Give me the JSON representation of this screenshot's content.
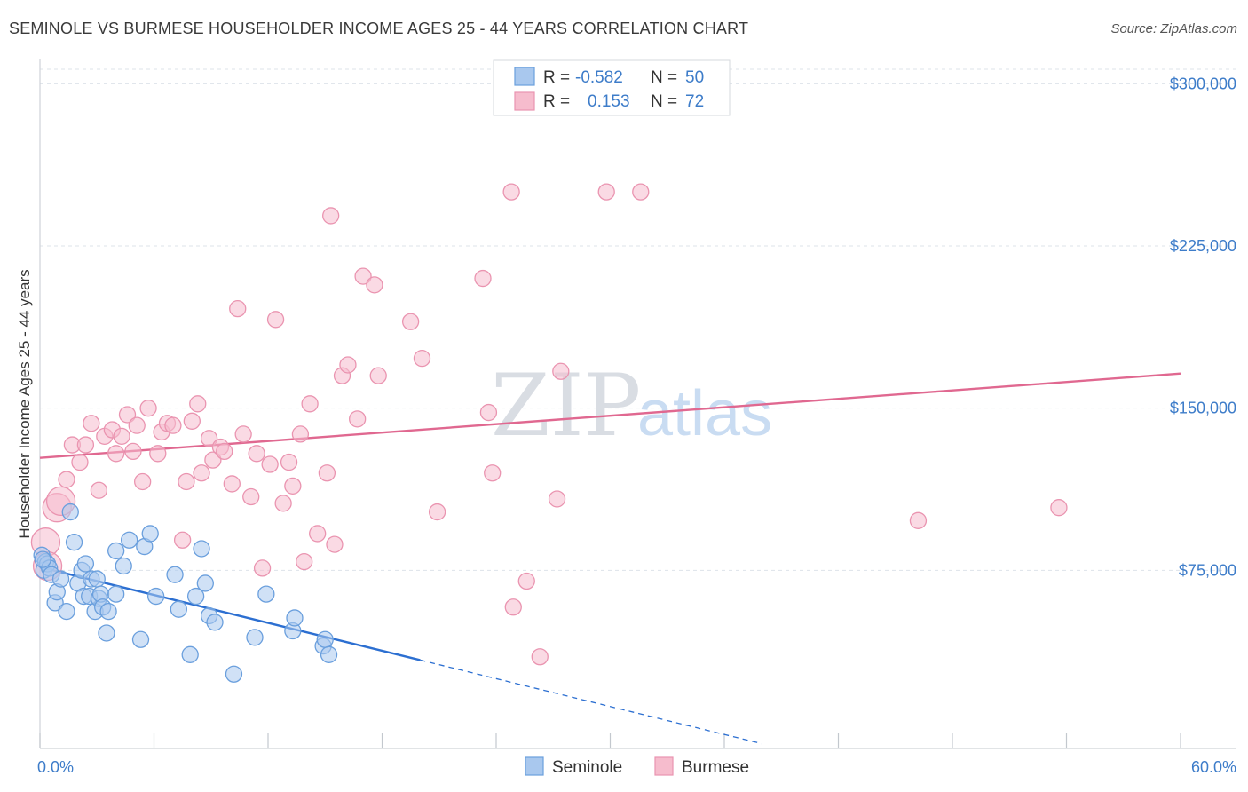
{
  "title": "SEMINOLE VS BURMESE HOUSEHOLDER INCOME AGES 25 - 44 YEARS CORRELATION CHART",
  "source": "Source: ZipAtlas.com",
  "watermark": {
    "zip": "ZIP",
    "atlas": "atlas"
  },
  "colors": {
    "seminole_fill": "#a9c8ee",
    "seminole_stroke": "#6a9fdd",
    "seminole_line": "#2c6fd1",
    "burmese_fill": "#f6bccd",
    "burmese_stroke": "#ea94b0",
    "burmese_line": "#e06890",
    "tick_label": "#3d7cc9",
    "grid": "#dde3ea"
  },
  "legend_top": {
    "rows": [
      {
        "r_label": "R =",
        "r_value": "-0.582",
        "n_label": "N =",
        "n_value": "50",
        "series": "seminole"
      },
      {
        "r_label": "R =",
        "r_value": "0.153",
        "n_label": "N =",
        "n_value": "72",
        "series": "burmese"
      }
    ]
  },
  "legend_bottom": [
    {
      "label": "Seminole",
      "series": "seminole"
    },
    {
      "label": "Burmese",
      "series": "burmese"
    }
  ],
  "chart_data": {
    "type": "scatter",
    "title": "SEMINOLE VS BURMESE HOUSEHOLDER INCOME AGES 25 - 44 YEARS CORRELATION CHART",
    "xlabel": "",
    "ylabel": "Householder Income Ages 25 - 44 years",
    "xlim": [
      0,
      60
    ],
    "ylim": [
      0,
      310000
    ],
    "x_tick_labels": [
      {
        "value": 0,
        "label": "0.0%"
      },
      {
        "value": 60,
        "label": "60.0%"
      }
    ],
    "y_ticks": [
      {
        "value": 75000,
        "label": "$75,000"
      },
      {
        "value": 150000,
        "label": "$150,000"
      },
      {
        "value": 225000,
        "label": "$225,000"
      },
      {
        "value": 300000,
        "label": "$300,000"
      }
    ],
    "x_minor_ticks": [
      0,
      6,
      12,
      18,
      24,
      30,
      36,
      42,
      48,
      54,
      60
    ],
    "series": [
      {
        "name": "Seminole",
        "key": "seminole",
        "R": -0.582,
        "N": 50,
        "trend": {
          "x0": 0,
          "y0": 76500,
          "x1": 20,
          "y1": 33500,
          "dash_to_x": 38
        },
        "points": [
          [
            0.1,
            82000
          ],
          [
            0.2,
            75000
          ],
          [
            0.3,
            79000
          ],
          [
            0.4,
            78000
          ],
          [
            0.5,
            76000
          ],
          [
            0.6,
            73000
          ],
          [
            0.8,
            60000
          ],
          [
            0.9,
            65000
          ],
          [
            1.1,
            71000
          ],
          [
            1.4,
            56000
          ],
          [
            1.6,
            102000
          ],
          [
            1.8,
            88000
          ],
          [
            2.0,
            69000
          ],
          [
            2.2,
            75000
          ],
          [
            2.3,
            63000
          ],
          [
            2.4,
            78000
          ],
          [
            2.6,
            63000
          ],
          [
            2.7,
            71000
          ],
          [
            2.9,
            56000
          ],
          [
            3.0,
            71000
          ],
          [
            3.1,
            62000
          ],
          [
            3.2,
            64000
          ],
          [
            3.3,
            58000
          ],
          [
            3.5,
            46000
          ],
          [
            3.6,
            56000
          ],
          [
            4.0,
            64000
          ],
          [
            4.0,
            84000
          ],
          [
            4.4,
            77000
          ],
          [
            4.7,
            89000
          ],
          [
            5.3,
            43000
          ],
          [
            5.5,
            86000
          ],
          [
            5.8,
            92000
          ],
          [
            6.1,
            63000
          ],
          [
            7.1,
            73000
          ],
          [
            7.3,
            57000
          ],
          [
            7.9,
            36000
          ],
          [
            8.2,
            63000
          ],
          [
            8.5,
            85000
          ],
          [
            8.7,
            69000
          ],
          [
            8.9,
            54000
          ],
          [
            9.2,
            51000
          ],
          [
            10.2,
            27000
          ],
          [
            11.3,
            44000
          ],
          [
            11.9,
            64000
          ],
          [
            13.3,
            47000
          ],
          [
            13.4,
            53000
          ],
          [
            14.9,
            40000
          ],
          [
            15.0,
            43000
          ],
          [
            15.2,
            36000
          ],
          [
            0.15,
            80000
          ]
        ]
      },
      {
        "name": "Burmese",
        "key": "burmese",
        "R": 0.153,
        "N": 72,
        "trend": {
          "x0": 0,
          "y0": 127000,
          "x1": 60,
          "y1": 166000
        },
        "points": [
          [
            0.3,
            88000
          ],
          [
            0.4,
            77000
          ],
          [
            0.9,
            104000
          ],
          [
            1.1,
            107000
          ],
          [
            1.4,
            117000
          ],
          [
            1.7,
            133000
          ],
          [
            2.1,
            125000
          ],
          [
            2.4,
            133000
          ],
          [
            2.7,
            143000
          ],
          [
            3.1,
            112000
          ],
          [
            3.4,
            137000
          ],
          [
            3.8,
            140000
          ],
          [
            4.0,
            129000
          ],
          [
            4.3,
            137000
          ],
          [
            4.6,
            147000
          ],
          [
            4.9,
            130000
          ],
          [
            5.1,
            142000
          ],
          [
            5.4,
            116000
          ],
          [
            5.7,
            150000
          ],
          [
            6.2,
            129000
          ],
          [
            6.4,
            139000
          ],
          [
            6.7,
            143000
          ],
          [
            7.0,
            142000
          ],
          [
            7.5,
            89000
          ],
          [
            7.7,
            116000
          ],
          [
            8.0,
            144000
          ],
          [
            8.3,
            152000
          ],
          [
            8.5,
            120000
          ],
          [
            8.9,
            136000
          ],
          [
            9.1,
            126000
          ],
          [
            9.5,
            132000
          ],
          [
            9.7,
            130000
          ],
          [
            10.1,
            115000
          ],
          [
            10.4,
            196000
          ],
          [
            10.7,
            138000
          ],
          [
            11.1,
            109000
          ],
          [
            11.4,
            129000
          ],
          [
            11.7,
            76000
          ],
          [
            12.1,
            124000
          ],
          [
            12.4,
            191000
          ],
          [
            12.8,
            106000
          ],
          [
            13.1,
            125000
          ],
          [
            13.3,
            114000
          ],
          [
            13.7,
            138000
          ],
          [
            13.9,
            79000
          ],
          [
            14.2,
            152000
          ],
          [
            14.6,
            92000
          ],
          [
            15.1,
            120000
          ],
          [
            15.3,
            239000
          ],
          [
            15.5,
            87000
          ],
          [
            15.9,
            165000
          ],
          [
            16.2,
            170000
          ],
          [
            16.7,
            145000
          ],
          [
            17.0,
            211000
          ],
          [
            17.6,
            207000
          ],
          [
            17.8,
            165000
          ],
          [
            19.5,
            190000
          ],
          [
            20.1,
            173000
          ],
          [
            20.9,
            102000
          ],
          [
            23.3,
            210000
          ],
          [
            23.6,
            148000
          ],
          [
            23.8,
            120000
          ],
          [
            24.9,
            58000
          ],
          [
            24.8,
            250000
          ],
          [
            25.6,
            70000
          ],
          [
            26.3,
            35000
          ],
          [
            27.2,
            108000
          ],
          [
            27.4,
            167000
          ],
          [
            29.8,
            250000
          ],
          [
            31.6,
            250000
          ],
          [
            46.2,
            98000
          ],
          [
            53.6,
            104000
          ]
        ]
      }
    ]
  }
}
